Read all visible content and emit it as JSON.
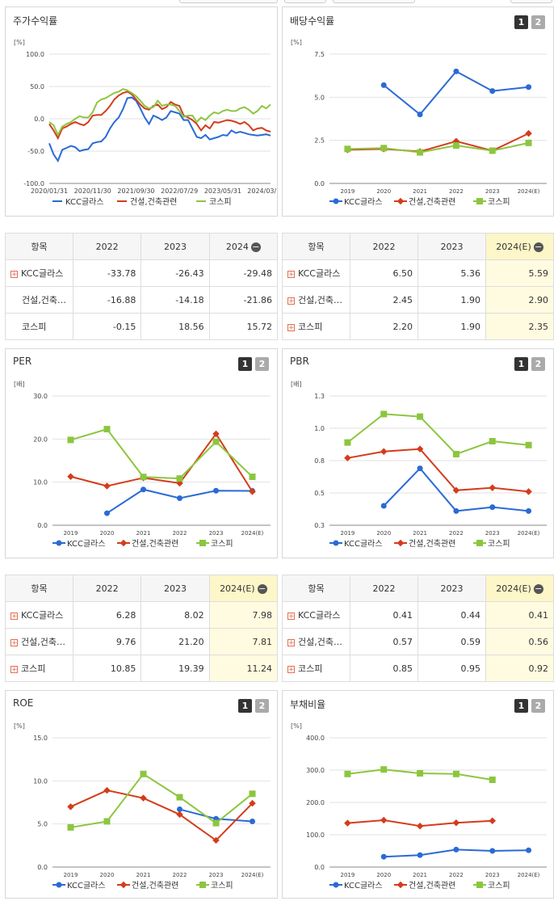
{
  "legend": {
    "kcc": "KCC글라스",
    "construction": "건설,건축관련",
    "kospi": "코스피"
  },
  "colors": {
    "kcc": "#2a6ad6",
    "construction": "#d43c1c",
    "kospi": "#8cc63f"
  },
  "buttons": {
    "one": "1",
    "two": "2"
  },
  "charts": [
    {
      "title": "주가수익률",
      "unit": "[%]",
      "show_buttons": false,
      "chart_data": {
        "type": "line",
        "ylim": [
          -100,
          100
        ],
        "yticks": [
          "100.0",
          "50.0",
          "0.0",
          "-50.0",
          "-100.0"
        ],
        "ytick_values": [
          100,
          50,
          0,
          -50,
          -100
        ],
        "xticks": [
          "2020/01/31",
          "2020/11/30",
          "2021/09/30",
          "2022/07/29",
          "2023/05/31",
          "2024/03/"
        ],
        "n_points": 52,
        "xtick_index": [
          0,
          10,
          20,
          30,
          40,
          49
        ],
        "series": [
          {
            "name": "KCC글라스",
            "key": "kcc",
            "values": [
              -38,
              -55,
              -65,
              -48,
              -45,
              -42,
              -44,
              -50,
              -48,
              -47,
              -38,
              -36,
              -35,
              -28,
              -15,
              -5,
              2,
              15,
              32,
              33,
              28,
              16,
              2,
              -8,
              5,
              2,
              -2,
              2,
              12,
              10,
              8,
              -2,
              -2,
              -15,
              -28,
              -30,
              -25,
              -32,
              -30,
              -28,
              -25,
              -26,
              -18,
              -22,
              -20,
              -22,
              -24,
              -25,
              -26,
              -25,
              -24,
              -26
            ]
          },
          {
            "name": "건설,건축관련",
            "key": "construction",
            "values": [
              -8,
              -18,
              -30,
              -15,
              -12,
              -8,
              -5,
              -8,
              -10,
              -5,
              5,
              6,
              6,
              12,
              20,
              30,
              36,
              40,
              42,
              38,
              30,
              22,
              16,
              14,
              20,
              22,
              15,
              18,
              26,
              22,
              20,
              5,
              2,
              -2,
              -8,
              -18,
              -10,
              -15,
              -5,
              -6,
              -4,
              -2,
              -3,
              -5,
              -8,
              -5,
              -10,
              -18,
              -15,
              -14,
              -18,
              -20
            ]
          },
          {
            "name": "코스피",
            "key": "kospi",
            "values": [
              -5,
              -10,
              -25,
              -12,
              -8,
              -5,
              0,
              4,
              2,
              2,
              10,
              25,
              30,
              32,
              36,
              40,
              42,
              46,
              44,
              40,
              35,
              28,
              20,
              16,
              18,
              28,
              20,
              22,
              22,
              20,
              12,
              3,
              5,
              5,
              -5,
              2,
              -2,
              5,
              10,
              8,
              12,
              14,
              12,
              12,
              16,
              18,
              14,
              8,
              12,
              20,
              16,
              22
            ]
          }
        ]
      }
    },
    {
      "title": "배당수익률",
      "unit": "[%]",
      "show_buttons": true,
      "chart_data": {
        "type": "line",
        "ylim": [
          0,
          7.5
        ],
        "yticks": [
          "7.5",
          "5.0",
          "2.5",
          "0.0"
        ],
        "ytick_values": [
          7.5,
          5.0,
          2.5,
          0.0
        ],
        "categories": [
          "2019",
          "2020",
          "2021",
          "2022",
          "2023",
          "2024(E)"
        ],
        "series": [
          {
            "name": "KCC글라스",
            "key": "kcc",
            "values": [
              null,
              5.7,
              4.0,
              6.5,
              5.36,
              5.59
            ]
          },
          {
            "name": "건설,건축관련",
            "key": "construction",
            "values": [
              1.95,
              2.0,
              1.85,
              2.45,
              1.9,
              2.9
            ]
          },
          {
            "name": "코스피",
            "key": "kospi",
            "values": [
              2.0,
              2.05,
              1.8,
              2.2,
              1.9,
              2.35
            ]
          }
        ]
      }
    },
    {
      "title": "PER",
      "unit": "[배]",
      "show_buttons": true,
      "chart_data": {
        "type": "line",
        "ylim": [
          0,
          30
        ],
        "yticks": [
          "30.0",
          "20.0",
          "10.0",
          "0.0"
        ],
        "ytick_values": [
          30,
          20,
          10,
          0
        ],
        "categories": [
          "2019",
          "2020",
          "2021",
          "2022",
          "2023",
          "2024(E)"
        ],
        "series": [
          {
            "name": "KCC글라스",
            "key": "kcc",
            "values": [
              null,
              2.8,
              8.3,
              6.28,
              8.02,
              7.98
            ]
          },
          {
            "name": "건설,건축관련",
            "key": "construction",
            "values": [
              11.3,
              9.1,
              11.0,
              9.76,
              21.2,
              7.81
            ]
          },
          {
            "name": "코스피",
            "key": "kospi",
            "values": [
              19.8,
              22.3,
              11.2,
              10.85,
              19.39,
              11.24
            ]
          }
        ]
      }
    },
    {
      "title": "PBR",
      "unit": "[배]",
      "show_buttons": true,
      "chart_data": {
        "type": "line",
        "ylim": [
          0.3,
          1.3
        ],
        "yticks": [
          "1.3",
          "1.0",
          "0.8",
          "0.5",
          "0.3"
        ],
        "ytick_values": [
          1.3,
          1.05,
          0.8,
          0.55,
          0.3
        ],
        "categories": [
          "2019",
          "2020",
          "2021",
          "2022",
          "2023",
          "2024(E)"
        ],
        "series": [
          {
            "name": "KCC글라스",
            "key": "kcc",
            "values": [
              null,
              0.45,
              0.74,
              0.41,
              0.44,
              0.41
            ]
          },
          {
            "name": "건설,건축관련",
            "key": "construction",
            "values": [
              0.82,
              0.87,
              0.89,
              0.57,
              0.59,
              0.56
            ]
          },
          {
            "name": "코스피",
            "key": "kospi",
            "values": [
              0.94,
              1.16,
              1.14,
              0.85,
              0.95,
              0.92
            ]
          }
        ]
      }
    },
    {
      "title": "ROE",
      "unit": "[%]",
      "show_buttons": true,
      "chart_data": {
        "type": "line",
        "ylim": [
          0,
          15
        ],
        "yticks": [
          "15.0",
          "10.0",
          "5.0",
          "0.0"
        ],
        "ytick_values": [
          15,
          10,
          5,
          0
        ],
        "categories": [
          "2019",
          "2020",
          "2021",
          "2022",
          "2023",
          "2024(E)"
        ],
        "series": [
          {
            "name": "KCC글라스",
            "key": "kcc",
            "values": [
              null,
              null,
              null,
              6.7,
              5.6,
              5.3
            ]
          },
          {
            "name": "건설,건축관련",
            "key": "construction",
            "values": [
              7.0,
              8.9,
              8.0,
              6.1,
              3.1,
              7.4
            ]
          },
          {
            "name": "코스피",
            "key": "kospi",
            "values": [
              4.6,
              5.3,
              10.8,
              8.1,
              5.1,
              8.5
            ]
          }
        ]
      }
    },
    {
      "title": "부채비율",
      "unit": "[%]",
      "show_buttons": true,
      "chart_data": {
        "type": "line",
        "ylim": [
          0,
          400
        ],
        "yticks": [
          "400.0",
          "300.0",
          "200.0",
          "100.0",
          "0.0"
        ],
        "ytick_values": [
          400,
          300,
          200,
          100,
          0
        ],
        "categories": [
          "2019",
          "2020",
          "2021",
          "2022",
          "2023",
          "2024(E)"
        ],
        "series": [
          {
            "name": "KCC글라스",
            "key": "kcc",
            "values": [
              null,
              32,
              37,
              54,
              50,
              52
            ]
          },
          {
            "name": "건설,건축관련",
            "key": "construction",
            "values": [
              136,
              145,
              127,
              137,
              143,
              null
            ]
          },
          {
            "name": "코스피",
            "key": "kospi",
            "values": [
              288,
              302,
              290,
              288,
              270,
              null
            ]
          }
        ]
      }
    }
  ],
  "tables": [
    {
      "headers": [
        "항목",
        "2022",
        "2023",
        "2024"
      ],
      "highlight_last": false,
      "rows": [
        {
          "name": "KCC글라스",
          "plus": true,
          "values": [
            "-33.78",
            "-26.43",
            "-29.48"
          ]
        },
        {
          "name": "건설,건축…",
          "plus": false,
          "values": [
            "-16.88",
            "-14.18",
            "-21.86"
          ]
        },
        {
          "name": "코스피",
          "plus": false,
          "values": [
            "-0.15",
            "18.56",
            "15.72"
          ]
        }
      ]
    },
    {
      "headers": [
        "항목",
        "2022",
        "2023",
        "2024(E)"
      ],
      "highlight_last": true,
      "rows": [
        {
          "name": "KCC글라스",
          "plus": true,
          "values": [
            "6.50",
            "5.36",
            "5.59"
          ]
        },
        {
          "name": "건설,건축…",
          "plus": true,
          "values": [
            "2.45",
            "1.90",
            "2.90"
          ]
        },
        {
          "name": "코스피",
          "plus": true,
          "values": [
            "2.20",
            "1.90",
            "2.35"
          ]
        }
      ]
    },
    {
      "headers": [
        "항목",
        "2022",
        "2023",
        "2024(E)"
      ],
      "highlight_last": true,
      "rows": [
        {
          "name": "KCC글라스",
          "plus": true,
          "values": [
            "6.28",
            "8.02",
            "7.98"
          ]
        },
        {
          "name": "건설,건축…",
          "plus": true,
          "values": [
            "9.76",
            "21.20",
            "7.81"
          ]
        },
        {
          "name": "코스피",
          "plus": true,
          "values": [
            "10.85",
            "19.39",
            "11.24"
          ]
        }
      ]
    },
    {
      "headers": [
        "항목",
        "2022",
        "2023",
        "2024(E)"
      ],
      "highlight_last": true,
      "rows": [
        {
          "name": "KCC글라스",
          "plus": true,
          "values": [
            "0.41",
            "0.44",
            "0.41"
          ]
        },
        {
          "name": "건설,건축…",
          "plus": true,
          "values": [
            "0.57",
            "0.59",
            "0.56"
          ]
        },
        {
          "name": "코스피",
          "plus": true,
          "values": [
            "0.85",
            "0.95",
            "0.92"
          ]
        }
      ]
    }
  ]
}
